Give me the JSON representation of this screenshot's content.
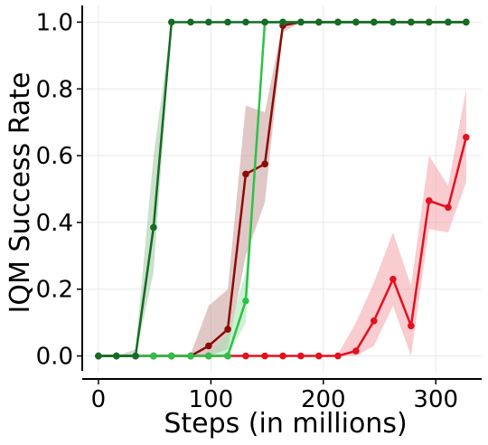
{
  "chart_data": {
    "type": "line",
    "title": "",
    "xlabel": "Steps (in millions)",
    "ylabel": "IQM Success Rate",
    "xlim": [
      -12,
      340
    ],
    "ylim": [
      -0.05,
      1.05
    ],
    "xticks": [
      0,
      100,
      200,
      300
    ],
    "xtick_labels": [
      "0",
      "100",
      "200",
      "300"
    ],
    "yticks": [
      0.0,
      0.2,
      0.4,
      0.6,
      0.8,
      1.0
    ],
    "ytick_labels": [
      "0.0",
      "0.2",
      "0.4",
      "0.6",
      "0.8",
      "1.0"
    ],
    "grid": true,
    "legend": "none",
    "series": [
      {
        "color": "#e3101e",
        "band_color": "#f4a3aa",
        "x": [
          0,
          16,
          33,
          49,
          65,
          82,
          98,
          115,
          131,
          148,
          164,
          180,
          196,
          213,
          229,
          245,
          262,
          278,
          294,
          311,
          327
        ],
        "y": [
          0,
          0,
          0,
          0,
          0,
          0,
          0,
          0,
          0,
          0,
          0,
          0,
          0,
          0,
          0.015,
          0.105,
          0.23,
          0.09,
          0.465,
          0.445,
          0.655
        ],
        "lower": [
          0,
          0,
          0,
          0,
          0,
          0,
          0,
          0,
          0,
          0,
          0,
          0,
          0,
          0,
          0,
          0.03,
          0.15,
          0,
          0.38,
          0.37,
          0.52
        ],
        "upper": [
          0,
          0,
          0,
          0,
          0,
          0,
          0,
          0,
          0,
          0,
          0,
          0,
          0,
          0.005,
          0.1,
          0.22,
          0.37,
          0.21,
          0.6,
          0.51,
          0.8
        ]
      },
      {
        "color": "#8b0b06",
        "band_color": "#c69b98",
        "x": [
          0,
          16,
          33,
          49,
          65,
          82,
          98,
          115,
          131,
          148,
          164,
          180,
          196,
          213,
          229,
          245,
          262,
          278,
          294,
          311,
          327
        ],
        "y": [
          0,
          0,
          0,
          0,
          0,
          0,
          0.03,
          0.08,
          0.545,
          0.575,
          0.99,
          1,
          1,
          1,
          1,
          1,
          1,
          1,
          1,
          1,
          1
        ],
        "lower": [
          0,
          0,
          0,
          0,
          0,
          0,
          0,
          0.02,
          0.3,
          0.46,
          0.97,
          1,
          1,
          1,
          1,
          1,
          1,
          1,
          1,
          1,
          1
        ],
        "upper": [
          0,
          0,
          0,
          0,
          0,
          0.005,
          0.15,
          0.2,
          0.75,
          0.73,
          1,
          1,
          1,
          1,
          1,
          1,
          1,
          1,
          1,
          1,
          1
        ]
      },
      {
        "color": "#2cc247",
        "band_color": "#a6e6b0",
        "x": [
          0,
          16,
          33,
          49,
          65,
          82,
          98,
          115,
          131,
          148,
          164,
          180,
          196,
          213,
          229,
          245,
          262,
          278,
          294,
          311,
          327
        ],
        "y": [
          0,
          0,
          0,
          0,
          0,
          0,
          0,
          0,
          0.165,
          1,
          1,
          1,
          1,
          1,
          1,
          1,
          1,
          1,
          1,
          1,
          1
        ],
        "lower": [
          0,
          0,
          0,
          0,
          0,
          0,
          0,
          0,
          0.1,
          1,
          1,
          1,
          1,
          1,
          1,
          1,
          1,
          1,
          1,
          1,
          1
        ],
        "upper": [
          0,
          0,
          0,
          0,
          0,
          0,
          0,
          0.07,
          0.25,
          1,
          1,
          1,
          1,
          1,
          1,
          1,
          1,
          1,
          1,
          1,
          1
        ]
      },
      {
        "color": "#146b25",
        "band_color": "#a3c8a3",
        "x": [
          0,
          16,
          33,
          49,
          65,
          82,
          98,
          115,
          131,
          148,
          164,
          180,
          196,
          213,
          229,
          245,
          262,
          278,
          294,
          311,
          327
        ],
        "y": [
          0,
          0,
          0,
          0.385,
          1,
          1,
          1,
          1,
          1,
          1,
          1,
          1,
          1,
          1,
          1,
          1,
          1,
          1,
          1,
          1,
          1
        ],
        "lower": [
          0,
          0,
          0,
          0.25,
          1,
          1,
          1,
          1,
          1,
          1,
          1,
          1,
          1,
          1,
          1,
          1,
          1,
          1,
          1,
          1,
          1
        ],
        "upper": [
          0,
          0,
          0.02,
          0.6,
          1,
          1,
          1,
          1,
          1,
          1,
          1,
          1,
          1,
          1,
          1,
          1,
          1,
          1,
          1,
          1,
          1
        ]
      }
    ]
  }
}
